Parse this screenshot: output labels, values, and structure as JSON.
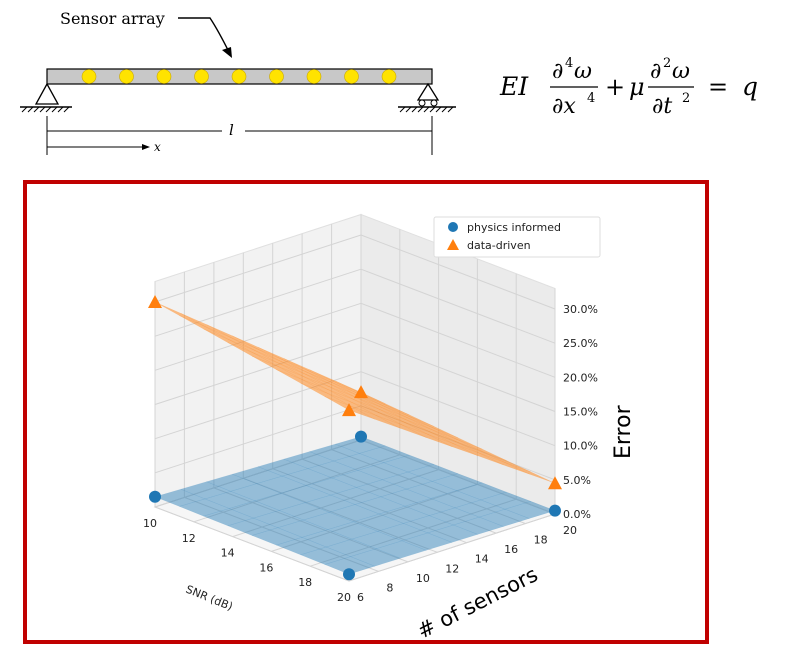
{
  "diagram": {
    "sensor_label": "Sensor array",
    "length_label": "l",
    "x_label": "x",
    "sensor_count": 9,
    "sensor_color": "#ffe300"
  },
  "equation": {
    "EI": "EI",
    "d4": "∂",
    "d4_sup": "4",
    "w": "ω",
    "dx": "∂x",
    "dx_sup": "4",
    "plus": "+",
    "mu": "μ",
    "d2": "∂",
    "d2_sup": "2",
    "dt": "∂t",
    "dt_sup": "2",
    "eq": "=",
    "q": "q"
  },
  "chart_data": {
    "type": "surface3d",
    "x_axis": {
      "label": "SNR (dB)",
      "ticks": [
        10,
        12,
        14,
        16,
        18,
        20
      ]
    },
    "y_axis": {
      "label": "# of sensors",
      "ticks": [
        6,
        8,
        10,
        12,
        14,
        16,
        18,
        20
      ]
    },
    "z_axis": {
      "label": "Error",
      "ticks": [
        "0.0%",
        "5.0%",
        "10.0%",
        "15.0%",
        "20.0%",
        "25.0%",
        "30.0%"
      ]
    },
    "legend": {
      "placement": "top-right"
    },
    "series": [
      {
        "name": "physics informed",
        "marker": "circle",
        "color": "#1f77b4",
        "points": [
          {
            "snr": 10,
            "sensors": 6,
            "error": 1.5
          },
          {
            "snr": 20,
            "sensors": 6,
            "error": 1.0
          },
          {
            "snr": 10,
            "sensors": 20,
            "error": 0.5
          },
          {
            "snr": 20,
            "sensors": 20,
            "error": 0.5
          }
        ]
      },
      {
        "name": "data-driven",
        "marker": "triangle",
        "color": "#ff7f0e",
        "points": [
          {
            "snr": 10,
            "sensors": 6,
            "error": 30.0
          },
          {
            "snr": 20,
            "sensors": 6,
            "error": 25.0
          },
          {
            "snr": 10,
            "sensors": 20,
            "error": 7.0
          },
          {
            "snr": 20,
            "sensors": 20,
            "error": 4.5
          }
        ]
      }
    ]
  }
}
